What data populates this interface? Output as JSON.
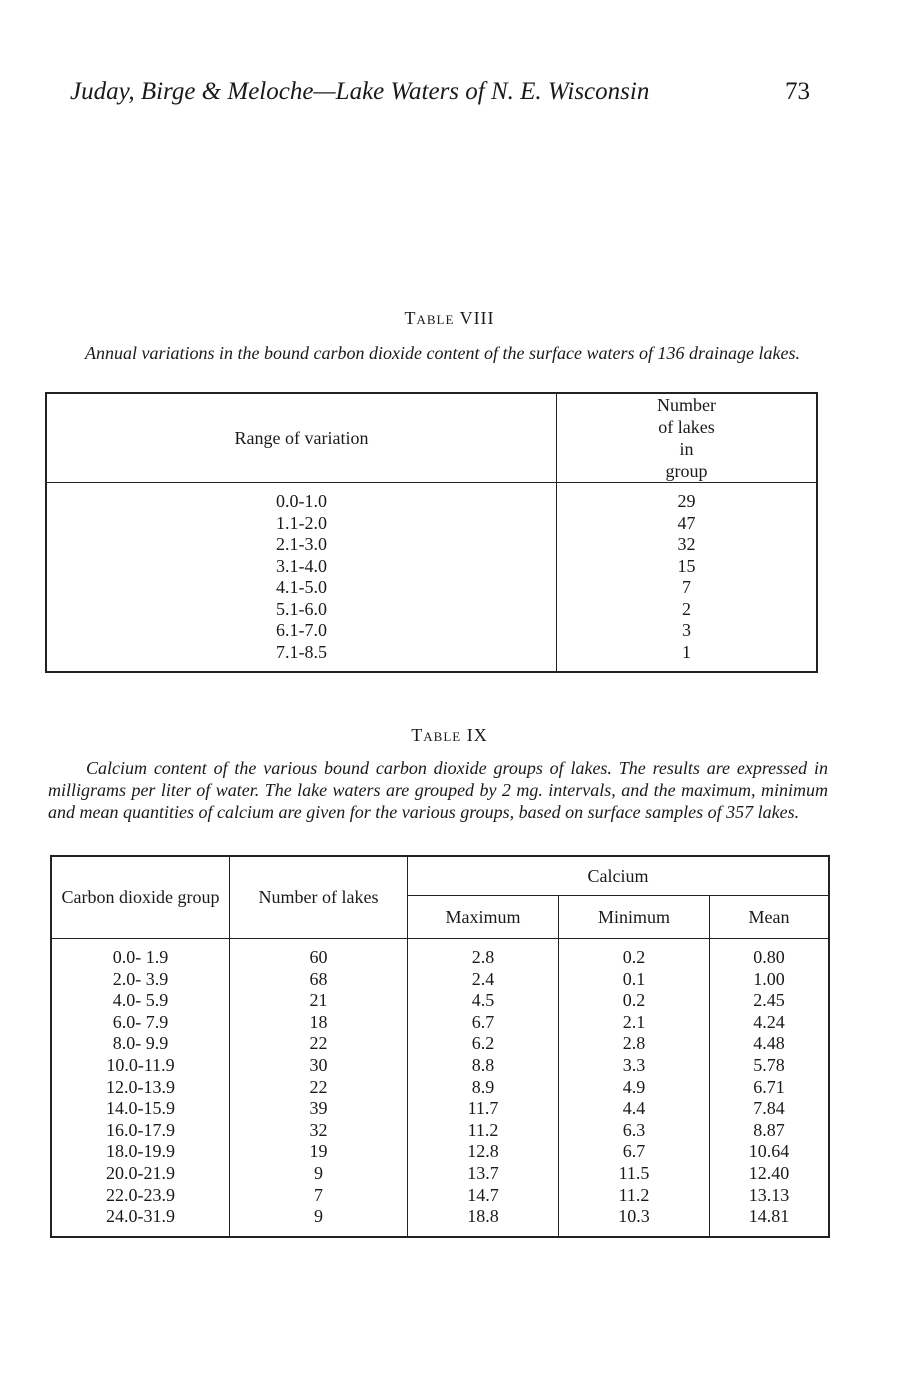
{
  "header": {
    "running_head": "Juday, Birge & Meloche—Lake Waters of N. E. Wisconsin",
    "page_number": "73"
  },
  "table8": {
    "label": "Table VIII",
    "caption": "Annual variations in the bound carbon dioxide content of the surface waters of 136 drainage lakes.",
    "columns": [
      "Range of variation",
      "Number of lakes in group"
    ],
    "rows": [
      [
        "0.0-1.0",
        "29"
      ],
      [
        "1.1-2.0",
        "47"
      ],
      [
        "2.1-3.0",
        "32"
      ],
      [
        "3.1-4.0",
        "15"
      ],
      [
        "4.1-5.0",
        "7"
      ],
      [
        "5.1-6.0",
        "2"
      ],
      [
        "6.1-7.0",
        "3"
      ],
      [
        "7.1-8.5",
        "1"
      ]
    ]
  },
  "table9": {
    "label": "Table IX",
    "caption": "Calcium content of the various bound carbon dioxide groups of lakes. The results are expressed in milligrams per liter of water. The lake waters are grouped by 2 mg. intervals, and the maximum, minimum and mean quantities of calcium are given for the various groups, based on surface samples of 357 lakes.",
    "columns": {
      "group": "Carbon dioxide group",
      "number": "Number of lakes",
      "calcium": "Calcium",
      "maximum": "Maximum",
      "minimum": "Minimum",
      "mean": "Mean"
    },
    "rows": [
      [
        "0.0- 1.9",
        "60",
        "2.8",
        "0.2",
        "0.80"
      ],
      [
        "2.0- 3.9",
        "68",
        "2.4",
        "0.1",
        "1.00"
      ],
      [
        "4.0- 5.9",
        "21",
        "4.5",
        "0.2",
        "2.45"
      ],
      [
        "6.0- 7.9",
        "18",
        "6.7",
        "2.1",
        "4.24"
      ],
      [
        "8.0- 9.9",
        "22",
        "6.2",
        "2.8",
        "4.48"
      ],
      [
        "10.0-11.9",
        "30",
        "8.8",
        "3.3",
        "5.78"
      ],
      [
        "12.0-13.9",
        "22",
        "8.9",
        "4.9",
        "6.71"
      ],
      [
        "14.0-15.9",
        "39",
        "11.7",
        "4.4",
        "7.84"
      ],
      [
        "16.0-17.9",
        "32",
        "11.2",
        "6.3",
        "8.87"
      ],
      [
        "18.0-19.9",
        "19",
        "12.8",
        "6.7",
        "10.64"
      ],
      [
        "20.0-21.9",
        "9",
        "13.7",
        "11.5",
        "12.40"
      ],
      [
        "22.0-23.9",
        "7",
        "14.7",
        "11.2",
        "13.13"
      ],
      [
        "24.0-31.9",
        "9",
        "18.8",
        "10.3",
        "14.81"
      ]
    ]
  }
}
